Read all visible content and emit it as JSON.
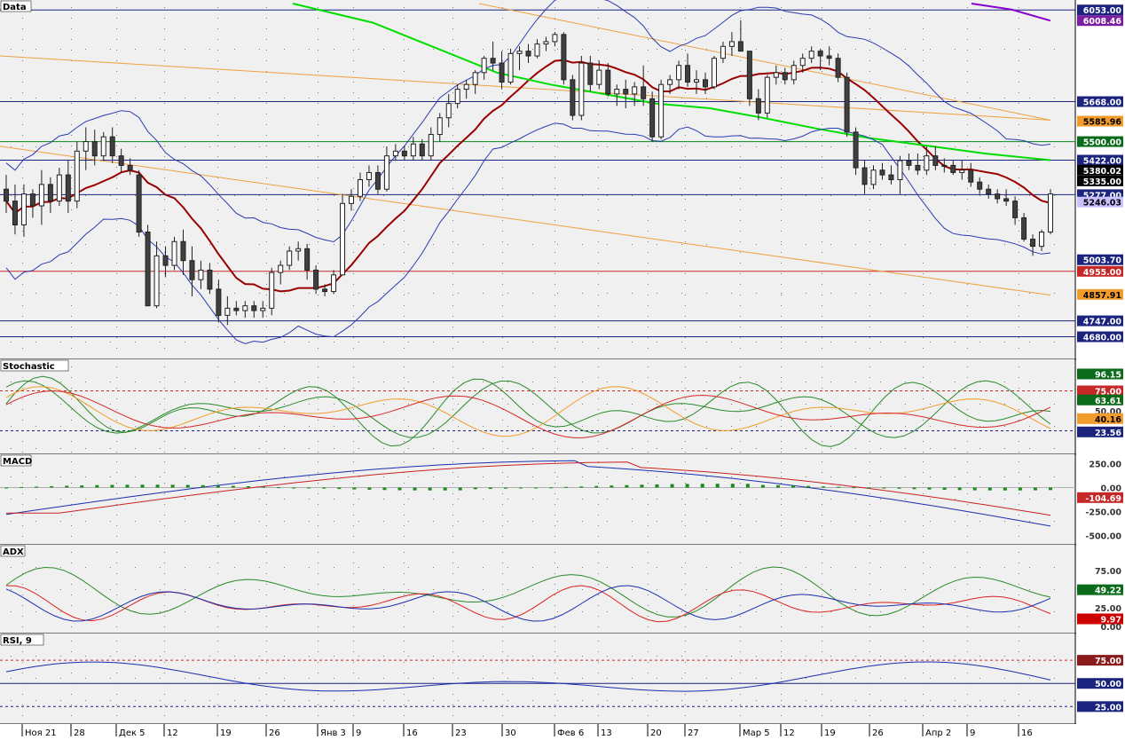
{
  "chart_data": {
    "type": "candlestick",
    "time_axis": {
      "labels": [
        "Ноя 21",
        "28",
        "Дек 5",
        "12",
        "19",
        "26",
        "Янв 3",
        "9",
        "16",
        "23",
        "30",
        "Фев 6",
        "13",
        "20",
        "27",
        "Мар 5",
        "12",
        "19",
        "26",
        "Апр 2",
        "9",
        "16"
      ]
    },
    "colors": {
      "background": "#f0f0f0",
      "grid_dot": "#7a7a7a",
      "bull_candle": "#ffffff",
      "bear_candle": "#404040",
      "sma_short": "#990000",
      "sma_long": "#00dd00",
      "sma_top": "#8800cc",
      "bollinger": "#2b3bb0",
      "channel": "#f0a040",
      "stoch_green": "#2a8a2a",
      "macd_line": "#1a2fb0",
      "macd_signal": "#cc2222",
      "adx_green": "#2a8a2a",
      "adx_red": "#dd2222",
      "adx_blue": "#1a2fb0",
      "rsi_line": "#1a2fb0"
    },
    "panels": [
      {
        "title": "Data",
        "ylim": [
          4600,
          6080
        ],
        "price_labels": [
          {
            "text": "6053.00",
            "value": 6053,
            "bg": "#1a237e",
            "fg": "#ffffff"
          },
          {
            "text": "6008.46",
            "value": 6008.46,
            "bg": "#7b1fa2",
            "fg": "#ffffff"
          },
          {
            "text": "5668.00",
            "value": 5668,
            "bg": "#1a237e",
            "fg": "#ffffff"
          },
          {
            "text": "5585.96",
            "value": 5585.96,
            "bg": "#f39c2c",
            "fg": "#000000"
          },
          {
            "text": "5500.00",
            "value": 5500,
            "bg": "#0a6b1a",
            "fg": "#ffffff"
          },
          {
            "text": "5422.00",
            "value": 5422,
            "bg": "#1a237e",
            "fg": "#ffffff"
          },
          {
            "text": "5380.02",
            "value": 5380.02,
            "bg": "#000000",
            "fg": "#ffffff"
          },
          {
            "text": "5335.00",
            "value": 5335,
            "bg": "#000000",
            "fg": "#ffffff"
          },
          {
            "text": "5277.00",
            "value": 5277,
            "bg": "#1a237e",
            "fg": "#ffffff"
          },
          {
            "text": "5246.03",
            "value": 5246.03,
            "bg": "#c9c2ff",
            "fg": "#000000"
          },
          {
            "text": "5003.70",
            "value": 5003.7,
            "bg": "#1a237e",
            "fg": "#ffffff"
          },
          {
            "text": "4955.00",
            "value": 4955,
            "bg": "#c62828",
            "fg": "#ffffff"
          },
          {
            "text": "4857.91",
            "value": 4857.91,
            "bg": "#f39c2c",
            "fg": "#000000"
          },
          {
            "text": "4747.00",
            "value": 4747,
            "bg": "#1a237e",
            "fg": "#ffffff"
          },
          {
            "text": "4680.00",
            "value": 4680,
            "bg": "#1a237e",
            "fg": "#ffffff"
          }
        ],
        "hlines": [
          {
            "value": 6053,
            "color": "#1a237e"
          },
          {
            "value": 5668,
            "color": "#1a237e"
          },
          {
            "value": 5500,
            "color": "#0a8a1a"
          },
          {
            "value": 5422,
            "color": "#1a237e"
          },
          {
            "value": 5277,
            "color": "#1a237e"
          },
          {
            "value": 4955,
            "color": "#c62828"
          },
          {
            "value": 4747,
            "color": "#1a237e"
          },
          {
            "value": 4680,
            "color": "#1a237e"
          }
        ],
        "candles": [
          [
            5300,
            5360,
            5200,
            5250
          ],
          [
            5250,
            5320,
            5110,
            5150
          ],
          [
            5150,
            5320,
            5100,
            5280
          ],
          [
            5280,
            5300,
            5180,
            5230
          ],
          [
            5230,
            5380,
            5150,
            5320
          ],
          [
            5320,
            5350,
            5200,
            5250
          ],
          [
            5250,
            5390,
            5230,
            5360
          ],
          [
            5360,
            5420,
            5200,
            5250
          ],
          [
            5250,
            5500,
            5220,
            5460
          ],
          [
            5460,
            5560,
            5380,
            5500
          ],
          [
            5500,
            5550,
            5400,
            5440
          ],
          [
            5440,
            5540,
            5420,
            5520
          ],
          [
            5520,
            5560,
            5410,
            5440
          ],
          [
            5440,
            5470,
            5370,
            5400
          ],
          [
            5400,
            5430,
            5360,
            5380
          ],
          [
            5360,
            5380,
            5100,
            5120
          ],
          [
            5120,
            5150,
            4810,
            4810
          ],
          [
            4810,
            5080,
            4800,
            5020
          ],
          [
            5020,
            5060,
            4930,
            4980
          ],
          [
            4980,
            5100,
            4960,
            5080
          ],
          [
            5080,
            5130,
            4940,
            5000
          ],
          [
            5000,
            5060,
            4850,
            4920
          ],
          [
            4920,
            5000,
            4880,
            4960
          ],
          [
            4960,
            4990,
            4860,
            4880
          ],
          [
            4880,
            4920,
            4740,
            4770
          ],
          [
            4770,
            4850,
            4730,
            4800
          ],
          [
            4800,
            4830,
            4770,
            4790
          ],
          [
            4790,
            4830,
            4760,
            4810
          ],
          [
            4810,
            4830,
            4760,
            4790
          ],
          [
            4790,
            4830,
            4760,
            4800
          ],
          [
            4800,
            4970,
            4770,
            4950
          ],
          [
            4950,
            5000,
            4900,
            4980
          ],
          [
            4980,
            5060,
            4960,
            5040
          ],
          [
            5040,
            5080,
            5000,
            5050
          ],
          [
            5050,
            5070,
            4920,
            4960
          ],
          [
            4960,
            4980,
            4860,
            4880
          ],
          [
            4880,
            4900,
            4850,
            4870
          ],
          [
            4870,
            4960,
            4860,
            4940
          ],
          [
            4940,
            5280,
            4940,
            5240
          ],
          [
            5240,
            5300,
            5210,
            5270
          ],
          [
            5270,
            5370,
            5250,
            5340
          ],
          [
            5340,
            5400,
            5310,
            5370
          ],
          [
            5370,
            5400,
            5280,
            5300
          ],
          [
            5300,
            5480,
            5290,
            5440
          ],
          [
            5440,
            5490,
            5420,
            5460
          ],
          [
            5460,
            5480,
            5420,
            5440
          ],
          [
            5440,
            5520,
            5420,
            5490
          ],
          [
            5490,
            5510,
            5420,
            5440
          ],
          [
            5440,
            5560,
            5420,
            5530
          ],
          [
            5530,
            5620,
            5500,
            5600
          ],
          [
            5600,
            5700,
            5560,
            5660
          ],
          [
            5660,
            5740,
            5640,
            5720
          ],
          [
            5720,
            5760,
            5680,
            5740
          ],
          [
            5740,
            5800,
            5700,
            5790
          ],
          [
            5790,
            5860,
            5760,
            5850
          ],
          [
            5850,
            5920,
            5800,
            5830
          ],
          [
            5830,
            5880,
            5720,
            5750
          ],
          [
            5750,
            5890,
            5740,
            5870
          ],
          [
            5870,
            5900,
            5800,
            5880
          ],
          [
            5880,
            5910,
            5830,
            5860
          ],
          [
            5860,
            5930,
            5850,
            5910
          ],
          [
            5910,
            5940,
            5880,
            5920
          ],
          [
            5920,
            5960,
            5900,
            5950
          ],
          [
            5950,
            5960,
            5740,
            5760
          ],
          [
            5760,
            5780,
            5590,
            5610
          ],
          [
            5610,
            5860,
            5590,
            5830
          ],
          [
            5830,
            5860,
            5710,
            5740
          ],
          [
            5740,
            5840,
            5720,
            5800
          ],
          [
            5800,
            5830,
            5690,
            5700
          ],
          [
            5700,
            5740,
            5650,
            5720
          ],
          [
            5720,
            5760,
            5640,
            5700
          ],
          [
            5700,
            5750,
            5650,
            5730
          ],
          [
            5730,
            5820,
            5650,
            5680
          ],
          [
            5680,
            5710,
            5500,
            5520
          ],
          [
            5520,
            5760,
            5510,
            5740
          ],
          [
            5740,
            5780,
            5700,
            5760
          ],
          [
            5760,
            5840,
            5720,
            5820
          ],
          [
            5820,
            5870,
            5730,
            5750
          ],
          [
            5750,
            5800,
            5700,
            5760
          ],
          [
            5760,
            5790,
            5700,
            5730
          ],
          [
            5730,
            5860,
            5720,
            5850
          ],
          [
            5850,
            5920,
            5830,
            5900
          ],
          [
            5900,
            5960,
            5860,
            5920
          ],
          [
            5920,
            6010,
            5890,
            5880
          ],
          [
            5880,
            5880,
            5650,
            5680
          ],
          [
            5680,
            5720,
            5590,
            5620
          ],
          [
            5620,
            5780,
            5600,
            5770
          ],
          [
            5770,
            5820,
            5740,
            5790
          ],
          [
            5790,
            5810,
            5740,
            5760
          ],
          [
            5760,
            5840,
            5740,
            5820
          ],
          [
            5820,
            5870,
            5790,
            5850
          ],
          [
            5850,
            5900,
            5830,
            5880
          ],
          [
            5880,
            5890,
            5800,
            5860
          ],
          [
            5860,
            5900,
            5820,
            5850
          ],
          [
            5850,
            5870,
            5750,
            5770
          ],
          [
            5770,
            5790,
            5520,
            5540
          ],
          [
            5540,
            5560,
            5360,
            5390
          ],
          [
            5390,
            5420,
            5280,
            5320
          ],
          [
            5320,
            5400,
            5300,
            5380
          ],
          [
            5380,
            5410,
            5340,
            5360
          ],
          [
            5360,
            5400,
            5320,
            5340
          ],
          [
            5340,
            5440,
            5280,
            5420
          ],
          [
            5420,
            5450,
            5380,
            5400
          ],
          [
            5400,
            5450,
            5360,
            5380
          ],
          [
            5380,
            5480,
            5360,
            5440
          ],
          [
            5440,
            5480,
            5380,
            5400
          ],
          [
            5400,
            5430,
            5370,
            5400
          ],
          [
            5400,
            5420,
            5360,
            5370
          ],
          [
            5370,
            5420,
            5340,
            5380
          ],
          [
            5380,
            5410,
            5310,
            5330
          ],
          [
            5330,
            5350,
            5280,
            5300
          ],
          [
            5300,
            5320,
            5260,
            5280
          ],
          [
            5280,
            5300,
            5240,
            5260
          ],
          [
            5260,
            5300,
            5230,
            5250
          ],
          [
            5250,
            5270,
            5150,
            5180
          ],
          [
            5180,
            5200,
            5080,
            5090
          ],
          [
            5090,
            5110,
            5020,
            5060
          ],
          [
            5060,
            5130,
            5040,
            5120
          ],
          [
            5120,
            5300,
            5110,
            5280
          ]
        ]
      },
      {
        "title": "Stochastic",
        "ylim": [
          0,
          110
        ],
        "price_labels": [
          {
            "text": "96.15",
            "value": 96.15,
            "bg": "#0a6b1a",
            "fg": "#ffffff"
          },
          {
            "text": "75.00",
            "value": 75,
            "bg": "#c62828",
            "fg": "#ffffff"
          },
          {
            "text": "63.61",
            "value": 63.61,
            "bg": "#0a6b1a",
            "fg": "#ffffff"
          },
          {
            "text": "50.00",
            "value": 50,
            "bg": "",
            "fg": "#333333"
          },
          {
            "text": "40.16",
            "value": 40.16,
            "bg": "#f39c2c",
            "fg": "#000000"
          },
          {
            "text": "23.56",
            "value": 23.56,
            "bg": "#1a237e",
            "fg": "#ffffff"
          }
        ],
        "hlines": [
          {
            "value": 75,
            "color": "#c62828"
          },
          {
            "value": 25,
            "color": "#1a237e"
          }
        ]
      },
      {
        "title": "MACD",
        "ylim": [
          -560,
          310
        ],
        "price_labels": [
          {
            "text": "250.00",
            "value": 250,
            "bg": "",
            "fg": "#333333"
          },
          {
            "text": "0.00",
            "value": 0,
            "bg": "",
            "fg": "#333333"
          },
          {
            "text": "-104.69",
            "value": -104.69,
            "bg": "#c62828",
            "fg": "#ffffff"
          },
          {
            "text": "-250.00",
            "value": -250,
            "bg": "",
            "fg": "#333333"
          },
          {
            "text": "-500.00",
            "value": -500,
            "bg": "",
            "fg": "#333333"
          }
        ]
      },
      {
        "title": "ADX",
        "ylim": [
          -5,
          105
        ],
        "price_labels": [
          {
            "text": "75.00",
            "value": 75,
            "bg": "",
            "fg": "#333333"
          },
          {
            "text": "49.22",
            "value": 49.22,
            "bg": "#0a6b1a",
            "fg": "#ffffff"
          },
          {
            "text": "25.00",
            "value": 25,
            "bg": "",
            "fg": "#333333"
          },
          {
            "text": "9.97",
            "value": 9.97,
            "bg": "#cc0000",
            "fg": "#ffffff"
          },
          {
            "text": "0.00",
            "value": 0,
            "bg": "",
            "fg": "#333333"
          }
        ]
      },
      {
        "title": "RSI, 9",
        "ylim": [
          10,
          100
        ],
        "price_labels": [
          {
            "text": "75.00",
            "value": 75,
            "bg": "#8b1a1a",
            "fg": "#ffffff"
          },
          {
            "text": "50.00",
            "value": 50,
            "bg": "#1a237e",
            "fg": "#ffffff"
          },
          {
            "text": "25.00",
            "value": 25,
            "bg": "#1a237e",
            "fg": "#ffffff"
          }
        ],
        "hlines": [
          {
            "value": 75,
            "color": "#c62828"
          },
          {
            "value": 50,
            "color": "#1a237e"
          },
          {
            "value": 25,
            "color": "#1a237e"
          }
        ]
      }
    ]
  }
}
